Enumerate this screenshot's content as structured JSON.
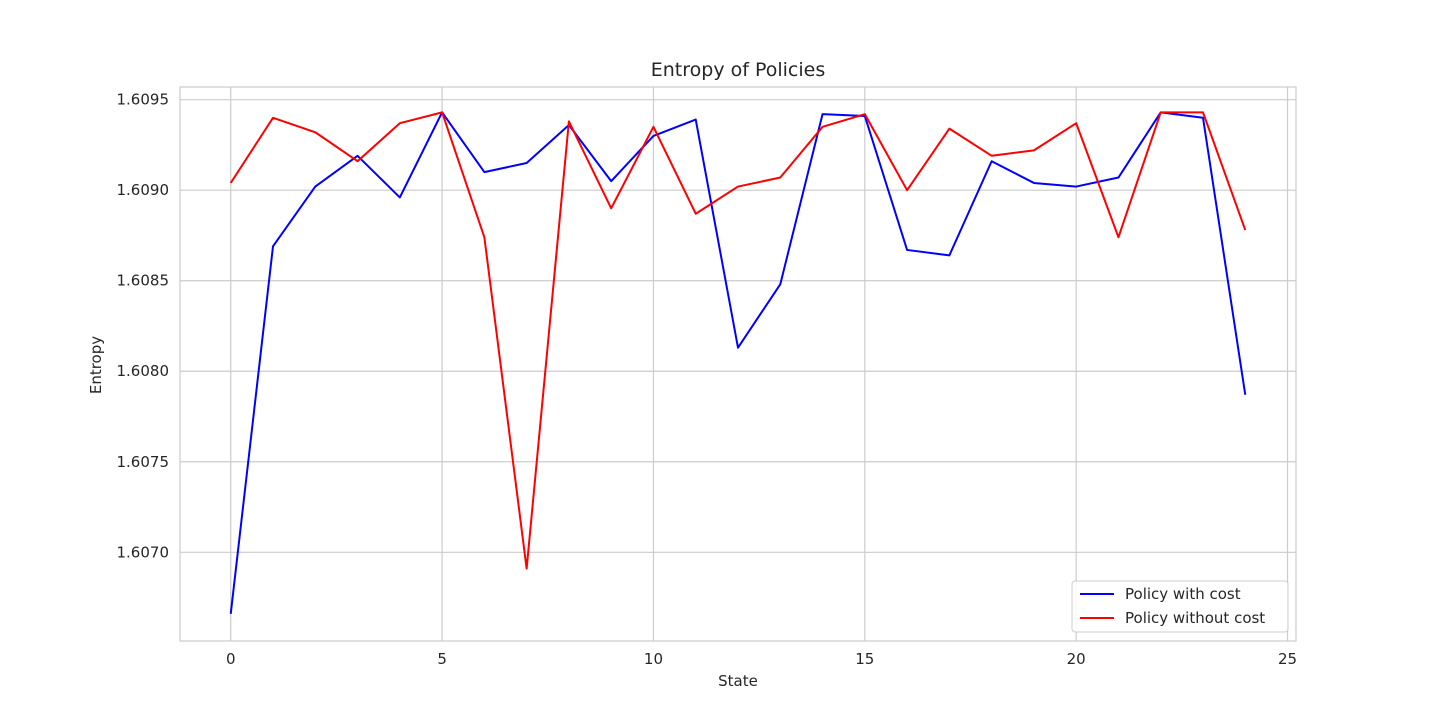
{
  "chart_data": {
    "type": "line",
    "title": "Entropy of Policies",
    "xlabel": "State",
    "ylabel": "Entropy",
    "xlim": [
      -1.2,
      25.2
    ],
    "ylim": [
      1.60651,
      1.60957
    ],
    "x_ticks": [
      0,
      5,
      10,
      15,
      20,
      25
    ],
    "x_tick_labels": [
      "0",
      "5",
      "10",
      "15",
      "20",
      "25"
    ],
    "y_ticks": [
      1.607,
      1.6075,
      1.608,
      1.6085,
      1.609,
      1.6095
    ],
    "y_tick_labels": [
      "1.6070",
      "1.6075",
      "1.6080",
      "1.6085",
      "1.6090",
      "1.6095"
    ],
    "grid": true,
    "legend_position": "lower-right",
    "x": [
      0,
      1,
      2,
      3,
      4,
      5,
      6,
      7,
      8,
      9,
      10,
      11,
      12,
      13,
      14,
      15,
      16,
      17,
      18,
      19,
      20,
      21,
      22,
      23,
      24
    ],
    "series": [
      {
        "name": "Policy with cost",
        "color": "#0000ff",
        "values": [
          1.60666,
          1.60869,
          1.60902,
          1.60919,
          1.60896,
          1.60943,
          1.6091,
          1.60915,
          1.60936,
          1.60905,
          1.6093,
          1.60939,
          1.60813,
          1.60848,
          1.60942,
          1.60941,
          1.60867,
          1.60864,
          1.60916,
          1.60904,
          1.60902,
          1.60907,
          1.60943,
          1.6094,
          1.60787
        ]
      },
      {
        "name": "Policy without cost",
        "color": "#ff0000",
        "values": [
          1.60904,
          1.6094,
          1.60932,
          1.60916,
          1.60937,
          1.60943,
          1.60874,
          1.60691,
          1.60938,
          1.6089,
          1.60935,
          1.60887,
          1.60902,
          1.60907,
          1.60935,
          1.60942,
          1.609,
          1.60934,
          1.60919,
          1.60922,
          1.60937,
          1.60874,
          1.60943,
          1.60943,
          1.60878
        ]
      }
    ]
  }
}
